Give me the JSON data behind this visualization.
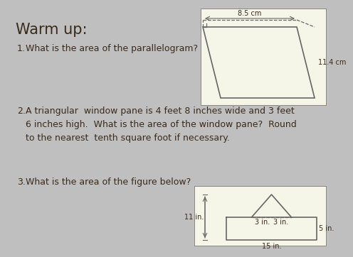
{
  "title": "Warm up:",
  "item1_num": "1.",
  "item1_text": "What is the area of the parallelogram?",
  "item2_num": "2.",
  "item2_text": "A triangular  window pane is 4 feet 8 inches wide and 3 feet\n6 inches high.  What is the area of the window pane?  Round\nto the nearest  tenth square foot if necessary.",
  "item3_num": "3.",
  "item3_text": "What is the area of the figure below?",
  "bg_color": "#c0bfbf",
  "box_color": "#f5f5e8",
  "text_color": "#3a2a1a",
  "line_color": "#666666",
  "para_label_base": "8.5 cm",
  "para_label_height": "11.4 cm",
  "fig3_labels": [
    "11 in.",
    "3 in.",
    "3 in.",
    "5 in.",
    "15 in."
  ],
  "title_fontsize": 15,
  "body_fontsize": 9,
  "small_fontsize": 7
}
